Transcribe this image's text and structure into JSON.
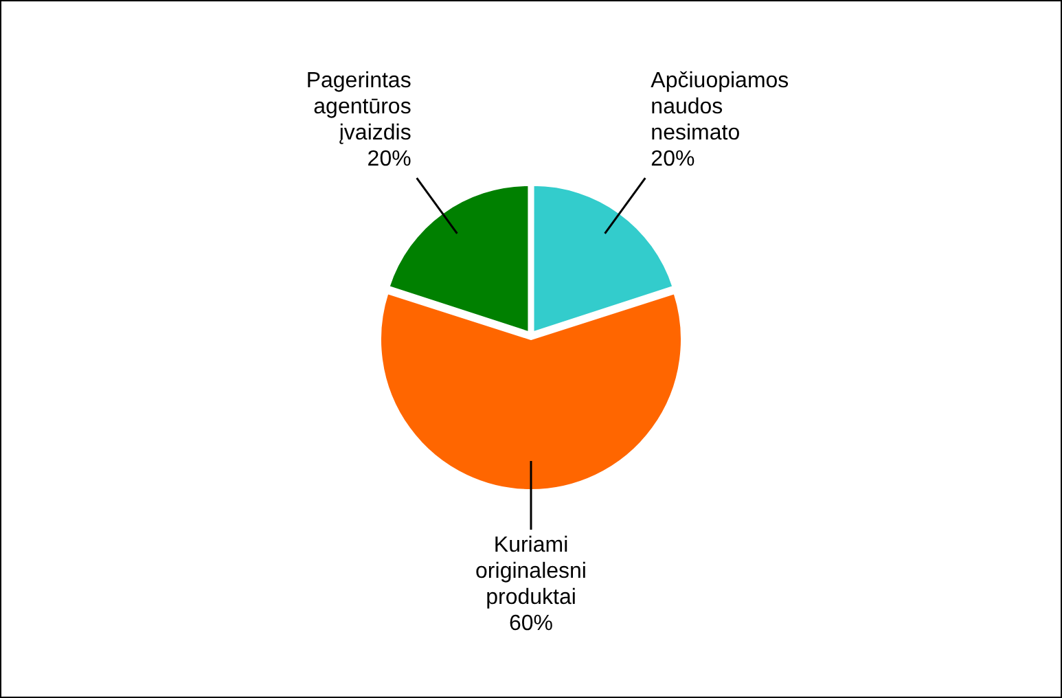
{
  "chart_data": {
    "type": "pie",
    "categories": [
      "Apčiuopiamos naudos nesimato",
      "Kuriami originalesni produktai",
      "Pagerintas agentūros įvaizdis"
    ],
    "values": [
      20,
      60,
      20
    ],
    "colors": [
      "#33cccc",
      "#ff6600",
      "#008000"
    ],
    "value_labels": [
      "20%",
      "60%",
      "20%"
    ]
  }
}
